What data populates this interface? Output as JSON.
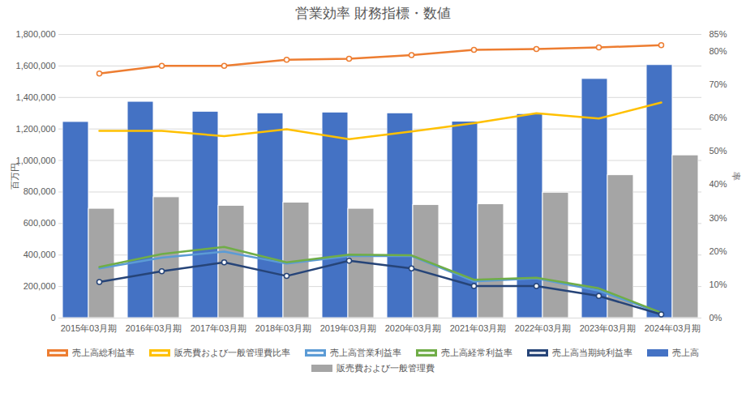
{
  "chart_data": {
    "type": "bar",
    "title": "営業効率 財務指標・数値",
    "y_label": "百万円",
    "y2_label": "率",
    "categories": [
      "2015年03月期",
      "2016年03月期",
      "2017年03月期",
      "2018年03月期",
      "2019年03月期",
      "2020年03月期",
      "2021年03月期",
      "2022年03月期",
      "2023年03月期",
      "2024年03月期"
    ],
    "ylim": [
      0,
      1800000
    ],
    "yticks": [
      0,
      {
        "value": 200000,
        "label": "200,000"
      },
      {
        "value": 400000,
        "label": "400,000"
      },
      {
        "value": 600000,
        "label": "600,000"
      },
      {
        "value": 800000,
        "label": "800,000"
      },
      {
        "value": 1000000,
        "label": "1,000,000"
      },
      {
        "value": 1200000,
        "label": "1,200,000"
      },
      {
        "value": 1400000,
        "label": "1,400,000"
      },
      {
        "value": 1600000,
        "label": "1,600,000"
      },
      {
        "value": 1800000,
        "label": "1,800,000"
      }
    ],
    "y2lim": [
      0,
      85
    ],
    "y2ticks": [
      {
        "value": 0,
        "label": "0%"
      },
      {
        "value": 10,
        "label": "10%"
      },
      {
        "value": 20,
        "label": "20%"
      },
      {
        "value": 30,
        "label": "30%"
      },
      {
        "value": 40,
        "label": "40%"
      },
      {
        "value": 50,
        "label": "50%"
      },
      {
        "value": 60,
        "label": "60%"
      },
      {
        "value": 70,
        "label": "70%"
      },
      {
        "value": 80,
        "label": "80%"
      },
      {
        "value": 85,
        "label": "85%"
      }
    ],
    "grid": true,
    "legend": "bottom",
    "series": [
      {
        "name": "売上高総利益率",
        "type": "line",
        "axis": "y2",
        "color": "#ed7d31",
        "marker": "circle",
        "values": [
          73.3,
          75.6,
          75.6,
          77.4,
          77.7,
          78.8,
          80.4,
          80.6,
          81.1,
          81.8
        ]
      },
      {
        "name": "販売費および一般管理費比率",
        "type": "line",
        "axis": "y2",
        "color": "#ffc000",
        "marker": "none",
        "values": [
          56.1,
          56.1,
          54.5,
          56.6,
          53.6,
          55.9,
          58.4,
          61.4,
          59.8,
          64.6
        ]
      },
      {
        "name": "売上高営業利益率",
        "type": "line",
        "axis": "y2",
        "color": "#5b9bd5",
        "marker": "none",
        "values": [
          14.9,
          18.1,
          19.9,
          16.3,
          18.6,
          18.6,
          11.0,
          11.9,
          8.2,
          1.4
        ]
      },
      {
        "name": "売上高経常利益率",
        "type": "line",
        "axis": "y2",
        "color": "#70ad47",
        "marker": "none",
        "values": [
          15.3,
          19.2,
          21.3,
          16.7,
          19.0,
          18.8,
          11.5,
          12.1,
          8.9,
          1.6
        ]
      },
      {
        "name": "売上高当期純利益率",
        "type": "line",
        "axis": "y2",
        "color": "#264478",
        "marker": "circle",
        "values": [
          10.8,
          14.0,
          16.7,
          12.6,
          17.2,
          14.9,
          9.6,
          9.6,
          6.6,
          1.1
        ]
      },
      {
        "name": "売上高",
        "type": "bar",
        "color": "#4472c4",
        "values": [
          1245000,
          1373000,
          1310000,
          1300000,
          1305000,
          1300000,
          1247000,
          1295000,
          1518000,
          1606000
        ]
      },
      {
        "name": "販売費および一般管理費",
        "type": "bar",
        "color": "#a5a5a5",
        "values": [
          694000,
          767000,
          713000,
          733000,
          694000,
          718000,
          723000,
          796000,
          907000,
          1033000
        ]
      }
    ]
  }
}
